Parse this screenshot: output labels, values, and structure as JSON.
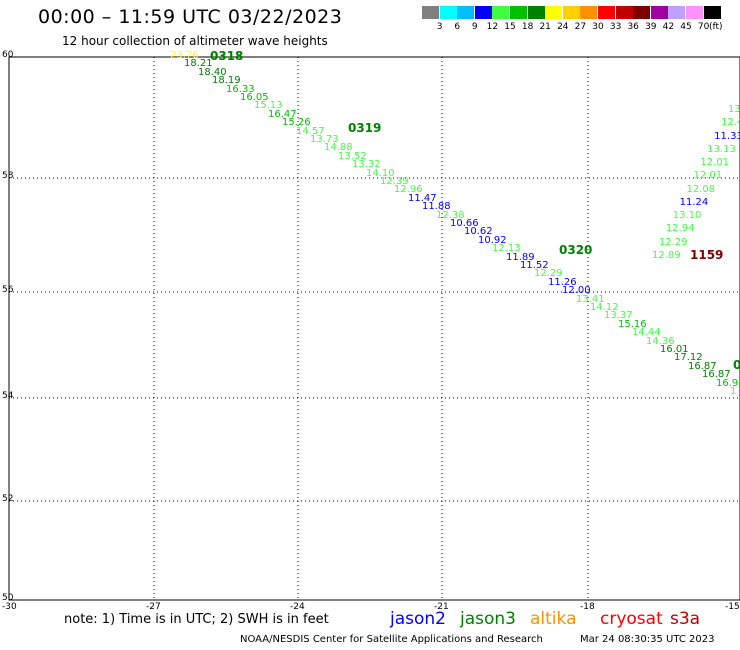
{
  "header": {
    "title": "00:00 – 11:59 UTC 03/22/2023",
    "subtitle": "12 hour collection of altimeter wave heights"
  },
  "scale": {
    "colors": [
      "#808080",
      "#00ffff",
      "#00bfff",
      "#0000ff",
      "#40ff40",
      "#00c000",
      "#008000",
      "#ffff00",
      "#ffd000",
      "#ff9000",
      "#ff0000",
      "#c00000",
      "#800000",
      "#a000a0",
      "#c0a0ff",
      "#ff90ff",
      "#000000"
    ],
    "labels": [
      "3",
      "6",
      "9",
      "12",
      "15",
      "18",
      "21",
      "24",
      "27",
      "30",
      "33",
      "36",
      "39",
      "42",
      "45",
      "70"
    ],
    "units": "(ft)"
  },
  "map": {
    "lat_labels": [
      "60",
      "58",
      "56",
      "54",
      "52",
      "50"
    ],
    "lon_labels": [
      "-30",
      "-27",
      "-24",
      "-21",
      "-18",
      "-15"
    ],
    "pass_labels": [
      {
        "text": "0318",
        "color": "#008000"
      },
      {
        "text": "0319",
        "color": "#008000"
      },
      {
        "text": "0320",
        "color": "#008000"
      },
      {
        "text": "1159",
        "color": "#800000"
      },
      {
        "text": "0",
        "color": "#008000"
      }
    ],
    "swh_track_main": [
      {
        "v": "23.76",
        "c": "#ffff00"
      },
      {
        "v": "18.21",
        "c": "#008000"
      },
      {
        "v": "18.40",
        "c": "#008000"
      },
      {
        "v": "18.19",
        "c": "#008000"
      },
      {
        "v": "16.33",
        "c": "#00c000"
      },
      {
        "v": "16.05",
        "c": "#00c000"
      },
      {
        "v": "15.13",
        "c": "#40ff40"
      },
      {
        "v": "16.47",
        "c": "#00c000"
      },
      {
        "v": "15.26",
        "c": "#00c000"
      },
      {
        "v": "14.57",
        "c": "#40ff40"
      },
      {
        "v": "13.73",
        "c": "#40ff40"
      },
      {
        "v": "14.88",
        "c": "#40ff40"
      },
      {
        "v": "13.52",
        "c": "#40ff40"
      },
      {
        "v": "13.32",
        "c": "#40ff40"
      },
      {
        "v": "14.10",
        "c": "#40ff40"
      },
      {
        "v": "12.39",
        "c": "#40ff40"
      },
      {
        "v": "12.96",
        "c": "#40ff40"
      },
      {
        "v": "11.47",
        "c": "#0000ff"
      },
      {
        "v": "11.88",
        "c": "#0000ff"
      },
      {
        "v": "12.38",
        "c": "#40ff40"
      },
      {
        "v": "10.66",
        "c": "#0000ff"
      },
      {
        "v": "10.62",
        "c": "#0000ff"
      },
      {
        "v": "10.92",
        "c": "#0000ff"
      },
      {
        "v": "12.13",
        "c": "#40ff40"
      },
      {
        "v": "11.89",
        "c": "#0000ff"
      },
      {
        "v": "11.52",
        "c": "#0000ff"
      },
      {
        "v": "12.29",
        "c": "#40ff40"
      },
      {
        "v": "11.26",
        "c": "#0000ff"
      },
      {
        "v": "12.00",
        "c": "#0000ff"
      },
      {
        "v": "13.41",
        "c": "#40ff40"
      },
      {
        "v": "14.12",
        "c": "#40ff40"
      },
      {
        "v": "13.37",
        "c": "#40ff40"
      },
      {
        "v": "15.16",
        "c": "#00c000"
      },
      {
        "v": "14.44",
        "c": "#40ff40"
      },
      {
        "v": "14.36",
        "c": "#40ff40"
      },
      {
        "v": "16.01",
        "c": "#008000"
      },
      {
        "v": "17.12",
        "c": "#008000"
      },
      {
        "v": "16.87",
        "c": "#008000"
      },
      {
        "v": "16.87",
        "c": "#008000"
      },
      {
        "v": "16.9",
        "c": "#00c000"
      },
      {
        "v": "1",
        "c": "#40ff40"
      }
    ],
    "swh_track_right": [
      {
        "v": "13",
        "c": "#40ff40"
      },
      {
        "v": "12.4",
        "c": "#40ff40"
      },
      {
        "v": "11.33",
        "c": "#0000ff"
      },
      {
        "v": "13.13",
        "c": "#40ff40"
      },
      {
        "v": "12.01",
        "c": "#40ff40"
      },
      {
        "v": "12.01",
        "c": "#40ff40"
      },
      {
        "v": "12.08",
        "c": "#40ff40"
      },
      {
        "v": "11.24",
        "c": "#0000ff"
      },
      {
        "v": "13.10",
        "c": "#40ff40"
      },
      {
        "v": "12.94",
        "c": "#40ff40"
      },
      {
        "v": "12.29",
        "c": "#40ff40"
      },
      {
        "v": "12.89",
        "c": "#40ff40"
      }
    ]
  },
  "footer": {
    "note": "note: 1) Time is in UTC; 2) SWH is in feet",
    "satellites": [
      {
        "name": "jason2",
        "color": "#0000ff"
      },
      {
        "name": "jason3",
        "color": "#008000"
      },
      {
        "name": "altika",
        "color": "#ff9000"
      },
      {
        "name": "cryosat",
        "color": "#ff0000"
      },
      {
        "name": "s3a",
        "color": "#c00000"
      }
    ],
    "credit": "NOAA/NESDIS Center for Satellite Applications and Research",
    "timestamp": "Mar 24 08:30:35 UTC 2023"
  }
}
